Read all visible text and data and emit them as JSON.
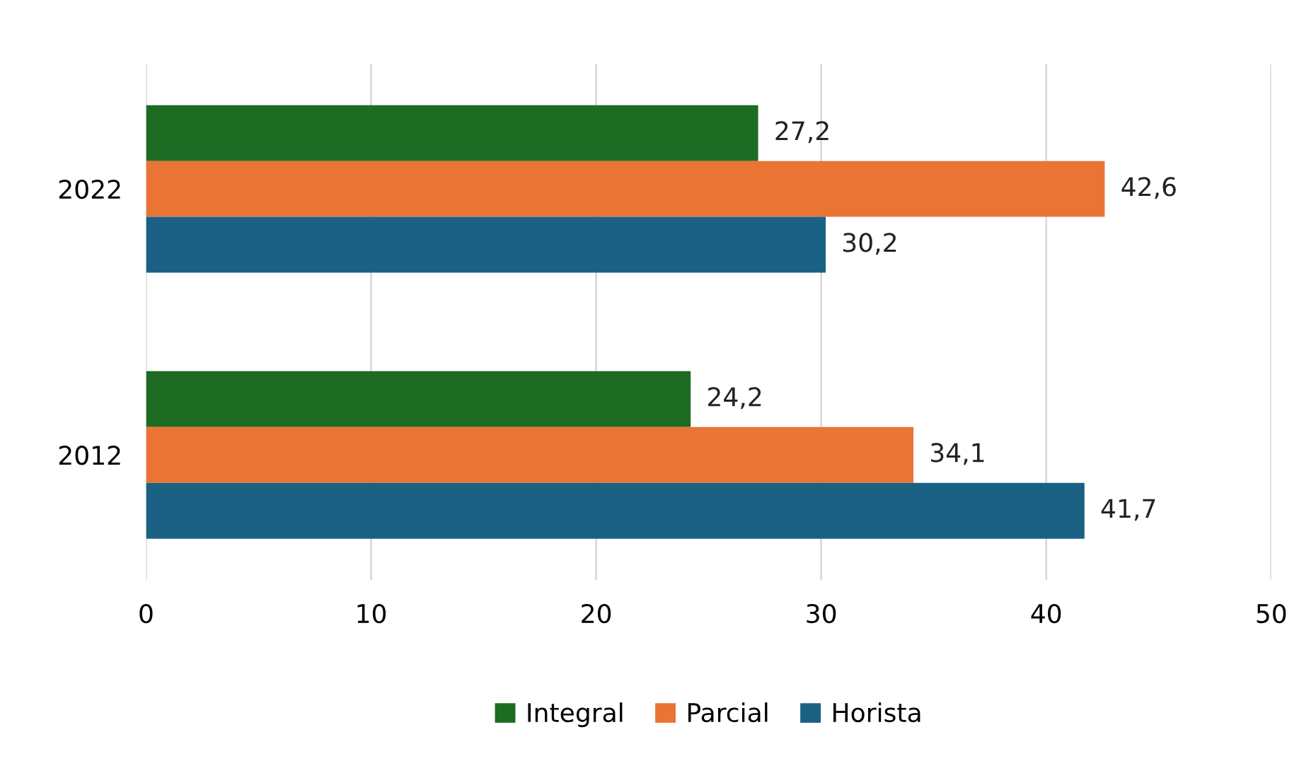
{
  "chart_data": {
    "type": "bar",
    "orientation": "horizontal",
    "categories": [
      "2022",
      "2012"
    ],
    "series": [
      {
        "name": "Integral",
        "color": "#1e6b24",
        "values": [
          27.2,
          24.2
        ],
        "value_labels": [
          "27,2",
          "24,2"
        ]
      },
      {
        "name": "Parcial",
        "color": "#ea7434",
        "values": [
          42.6,
          34.1
        ],
        "value_labels": [
          "42,6",
          "34,1"
        ]
      },
      {
        "name": "Horista",
        "color": "#1a6184",
        "values": [
          30.2,
          41.7
        ],
        "value_labels": [
          "30,2",
          "41,7"
        ]
      }
    ],
    "xlim": [
      0,
      50
    ],
    "xticks": [
      0,
      10,
      20,
      30,
      40,
      50
    ],
    "grid": "x",
    "legend": "bottom"
  }
}
